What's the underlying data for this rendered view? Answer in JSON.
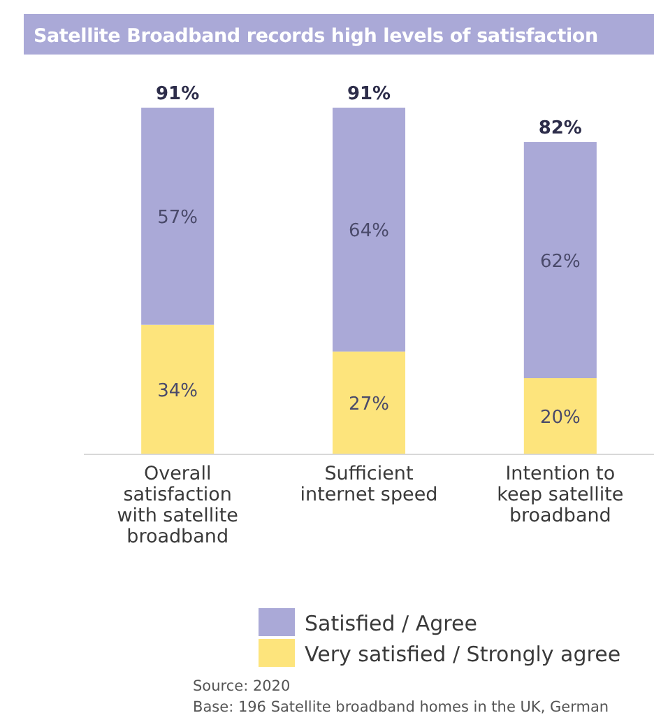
{
  "chart_data": {
    "type": "bar",
    "stacked": true,
    "title": "Satellite Broadband records high levels of satisfaction",
    "categories": [
      "Overall satisfaction with satellite broadband",
      "Sufficient internet speed",
      "Intention to keep satellite broadband"
    ],
    "series": [
      {
        "name": "Very satisfied / Strongly agree",
        "color": "#fde47c",
        "values": [
          34,
          27,
          20
        ],
        "value_labels": [
          "34%",
          "27%",
          "20%"
        ]
      },
      {
        "name": "Satisfied / Agree",
        "color": "#aaa9d7",
        "values": [
          57,
          64,
          62
        ],
        "value_labels": [
          "57%",
          "64%",
          "62%"
        ]
      }
    ],
    "totals": [
      "91%",
      "91%",
      "82%"
    ],
    "legend": "bottom",
    "annotations": [
      "Source: 2020",
      "Base: 196 Satellite broadband homes in the UK, German"
    ]
  }
}
